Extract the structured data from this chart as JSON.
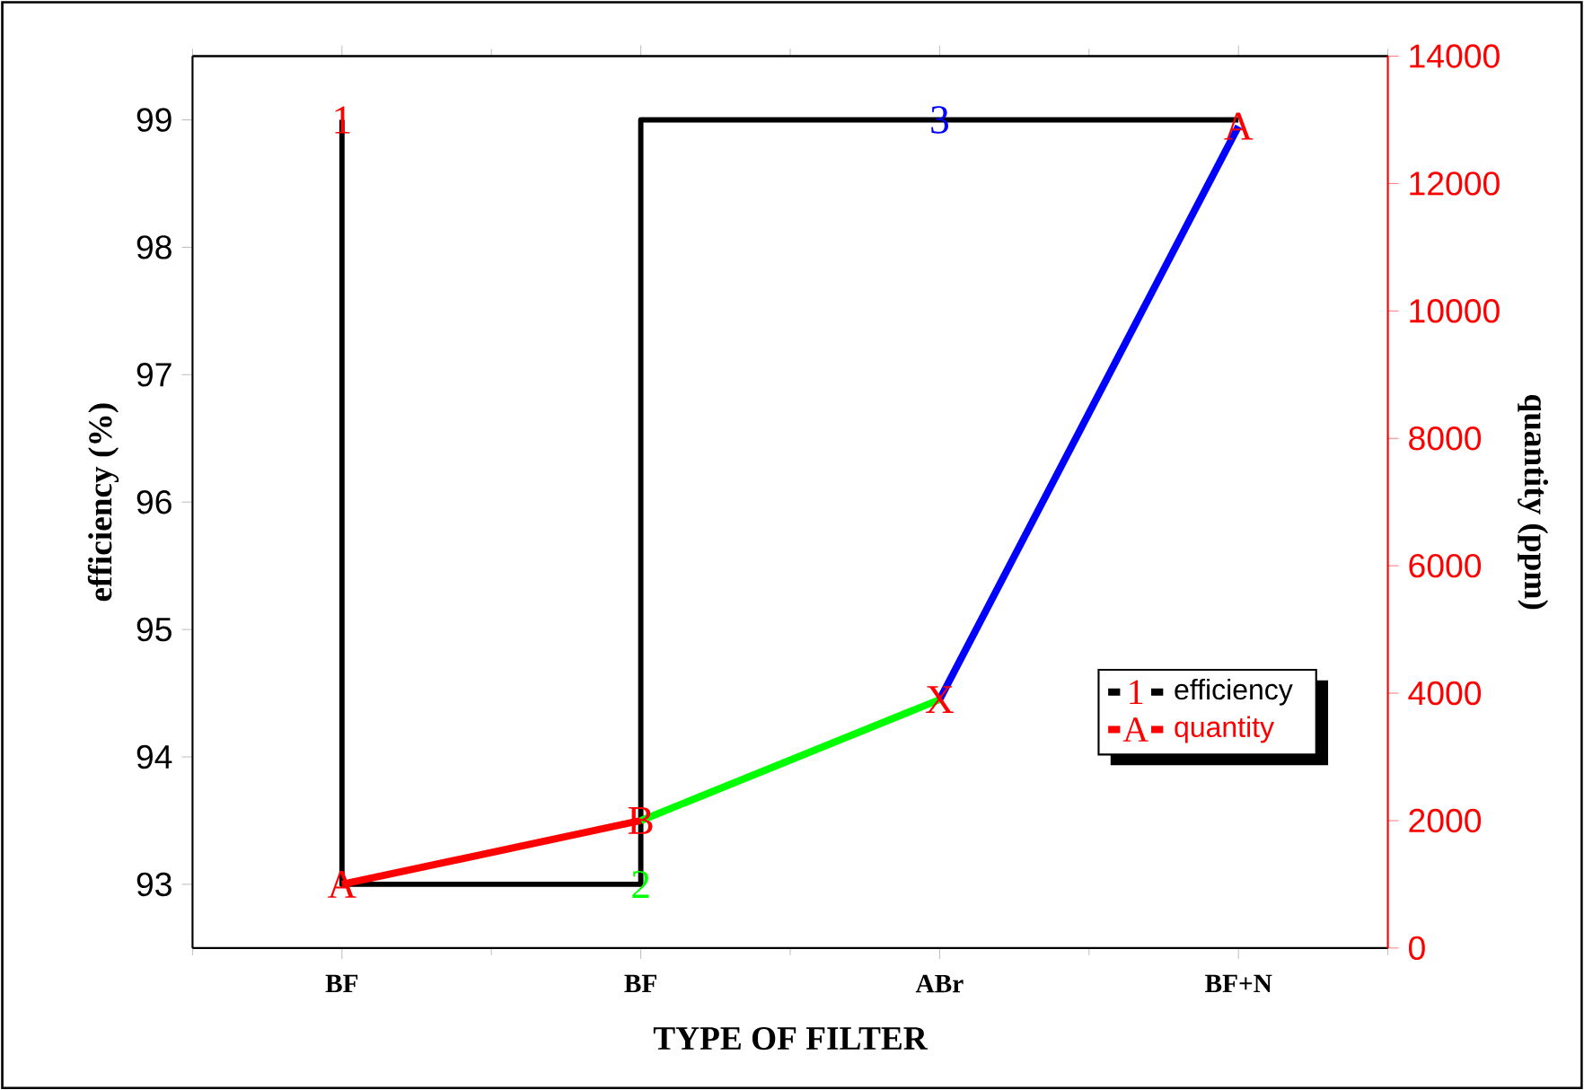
{
  "chart_data": {
    "type": "line",
    "categories": [
      "BF",
      "BF",
      "ABr",
      "BF+N"
    ],
    "xlabel": "TYPE OF FILTER",
    "ylabel": "efficiency (%)",
    "y2label": "quantity (ppm)",
    "ylim": [
      92.5,
      99.5
    ],
    "yticks": [
      93,
      94,
      95,
      96,
      97,
      98,
      99
    ],
    "y2lim": [
      0,
      14000
    ],
    "y2ticks": [
      0,
      2000,
      4000,
      6000,
      8000,
      10000,
      12000,
      14000
    ],
    "legend": "right",
    "series": [
      {
        "name": "efficiency",
        "type": "step",
        "color": "#000000",
        "values": [
          99,
          93,
          99,
          99
        ]
      },
      {
        "name": "quantity",
        "axis": "y2",
        "color": "#ff0000",
        "values": [
          1000,
          2000,
          null,
          null
        ]
      },
      {
        "axis": "y2",
        "color": "#00ff00",
        "values": [
          null,
          2000,
          3900,
          null
        ]
      },
      {
        "axis": "y2",
        "color": "#0000ff",
        "values": [
          null,
          null,
          3900,
          12900
        ]
      }
    ],
    "annotations": [
      {
        "text": "1",
        "x": "BF",
        "y": 99
      },
      {
        "text": "3",
        "x": "ABr",
        "y": 99
      },
      "A",
      "B",
      "X",
      "A",
      "2"
    ]
  }
}
